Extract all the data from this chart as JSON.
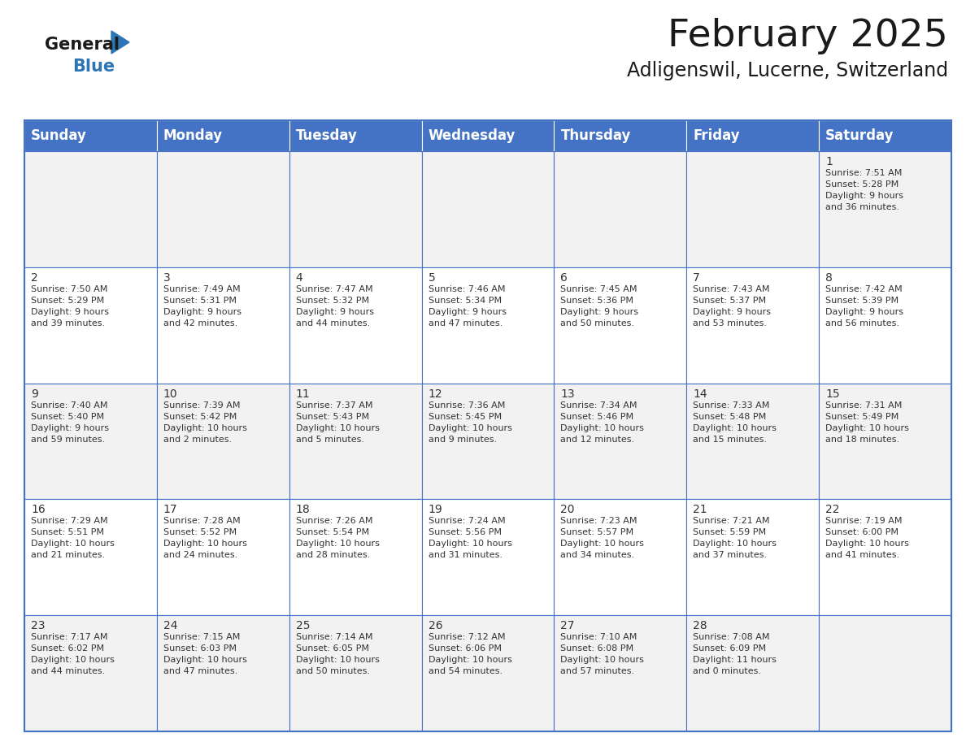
{
  "title": "February 2025",
  "subtitle": "Adligenswil, Lucerne, Switzerland",
  "header_bg": "#4472C4",
  "header_text": "#FFFFFF",
  "row_bg_light": "#F2F2F2",
  "row_bg_white": "#FFFFFF",
  "day_headers": [
    "Sunday",
    "Monday",
    "Tuesday",
    "Wednesday",
    "Thursday",
    "Friday",
    "Saturday"
  ],
  "title_fontsize": 34,
  "subtitle_fontsize": 17,
  "header_fontsize": 12,
  "cell_day_fontsize": 10,
  "cell_info_fontsize": 8,
  "border_color": "#4472C4",
  "text_color": "#333333",
  "logo_black": "#1A1A1A",
  "logo_blue": "#2E75B6",
  "calendar": [
    [
      {
        "day": null,
        "info": ""
      },
      {
        "day": null,
        "info": ""
      },
      {
        "day": null,
        "info": ""
      },
      {
        "day": null,
        "info": ""
      },
      {
        "day": null,
        "info": ""
      },
      {
        "day": null,
        "info": ""
      },
      {
        "day": 1,
        "info": "Sunrise: 7:51 AM\nSunset: 5:28 PM\nDaylight: 9 hours\nand 36 minutes."
      }
    ],
    [
      {
        "day": 2,
        "info": "Sunrise: 7:50 AM\nSunset: 5:29 PM\nDaylight: 9 hours\nand 39 minutes."
      },
      {
        "day": 3,
        "info": "Sunrise: 7:49 AM\nSunset: 5:31 PM\nDaylight: 9 hours\nand 42 minutes."
      },
      {
        "day": 4,
        "info": "Sunrise: 7:47 AM\nSunset: 5:32 PM\nDaylight: 9 hours\nand 44 minutes."
      },
      {
        "day": 5,
        "info": "Sunrise: 7:46 AM\nSunset: 5:34 PM\nDaylight: 9 hours\nand 47 minutes."
      },
      {
        "day": 6,
        "info": "Sunrise: 7:45 AM\nSunset: 5:36 PM\nDaylight: 9 hours\nand 50 minutes."
      },
      {
        "day": 7,
        "info": "Sunrise: 7:43 AM\nSunset: 5:37 PM\nDaylight: 9 hours\nand 53 minutes."
      },
      {
        "day": 8,
        "info": "Sunrise: 7:42 AM\nSunset: 5:39 PM\nDaylight: 9 hours\nand 56 minutes."
      }
    ],
    [
      {
        "day": 9,
        "info": "Sunrise: 7:40 AM\nSunset: 5:40 PM\nDaylight: 9 hours\nand 59 minutes."
      },
      {
        "day": 10,
        "info": "Sunrise: 7:39 AM\nSunset: 5:42 PM\nDaylight: 10 hours\nand 2 minutes."
      },
      {
        "day": 11,
        "info": "Sunrise: 7:37 AM\nSunset: 5:43 PM\nDaylight: 10 hours\nand 5 minutes."
      },
      {
        "day": 12,
        "info": "Sunrise: 7:36 AM\nSunset: 5:45 PM\nDaylight: 10 hours\nand 9 minutes."
      },
      {
        "day": 13,
        "info": "Sunrise: 7:34 AM\nSunset: 5:46 PM\nDaylight: 10 hours\nand 12 minutes."
      },
      {
        "day": 14,
        "info": "Sunrise: 7:33 AM\nSunset: 5:48 PM\nDaylight: 10 hours\nand 15 minutes."
      },
      {
        "day": 15,
        "info": "Sunrise: 7:31 AM\nSunset: 5:49 PM\nDaylight: 10 hours\nand 18 minutes."
      }
    ],
    [
      {
        "day": 16,
        "info": "Sunrise: 7:29 AM\nSunset: 5:51 PM\nDaylight: 10 hours\nand 21 minutes."
      },
      {
        "day": 17,
        "info": "Sunrise: 7:28 AM\nSunset: 5:52 PM\nDaylight: 10 hours\nand 24 minutes."
      },
      {
        "day": 18,
        "info": "Sunrise: 7:26 AM\nSunset: 5:54 PM\nDaylight: 10 hours\nand 28 minutes."
      },
      {
        "day": 19,
        "info": "Sunrise: 7:24 AM\nSunset: 5:56 PM\nDaylight: 10 hours\nand 31 minutes."
      },
      {
        "day": 20,
        "info": "Sunrise: 7:23 AM\nSunset: 5:57 PM\nDaylight: 10 hours\nand 34 minutes."
      },
      {
        "day": 21,
        "info": "Sunrise: 7:21 AM\nSunset: 5:59 PM\nDaylight: 10 hours\nand 37 minutes."
      },
      {
        "day": 22,
        "info": "Sunrise: 7:19 AM\nSunset: 6:00 PM\nDaylight: 10 hours\nand 41 minutes."
      }
    ],
    [
      {
        "day": 23,
        "info": "Sunrise: 7:17 AM\nSunset: 6:02 PM\nDaylight: 10 hours\nand 44 minutes."
      },
      {
        "day": 24,
        "info": "Sunrise: 7:15 AM\nSunset: 6:03 PM\nDaylight: 10 hours\nand 47 minutes."
      },
      {
        "day": 25,
        "info": "Sunrise: 7:14 AM\nSunset: 6:05 PM\nDaylight: 10 hours\nand 50 minutes."
      },
      {
        "day": 26,
        "info": "Sunrise: 7:12 AM\nSunset: 6:06 PM\nDaylight: 10 hours\nand 54 minutes."
      },
      {
        "day": 27,
        "info": "Sunrise: 7:10 AM\nSunset: 6:08 PM\nDaylight: 10 hours\nand 57 minutes."
      },
      {
        "day": 28,
        "info": "Sunrise: 7:08 AM\nSunset: 6:09 PM\nDaylight: 11 hours\nand 0 minutes."
      },
      {
        "day": null,
        "info": ""
      }
    ]
  ]
}
